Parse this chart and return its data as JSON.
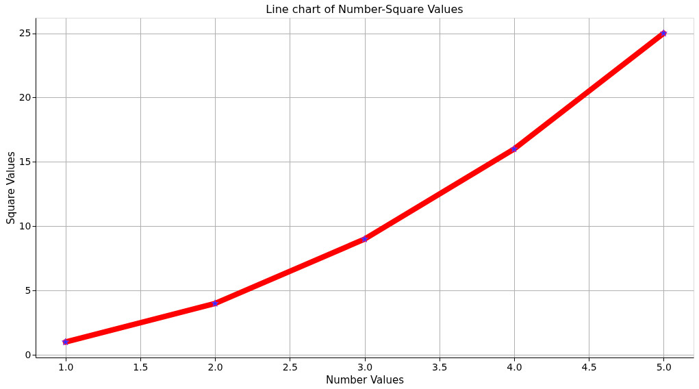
{
  "chart_data": {
    "type": "line",
    "title": "Line chart of Number-Square Values",
    "xlabel": "Number Values",
    "ylabel": "Square Values",
    "x": [
      1,
      2,
      3,
      4,
      5
    ],
    "series": [
      {
        "color": "#ff0000",
        "values": [
          1,
          4,
          9,
          16,
          25
        ]
      }
    ],
    "xlim": [
      0.8,
      5.2
    ],
    "xticks": [
      {
        "value": 1,
        "label": "1.0"
      },
      {
        "value": 1.5,
        "label": "1.5"
      },
      {
        "value": 2,
        "label": "2.0"
      },
      {
        "value": 2.5,
        "label": "2.5"
      },
      {
        "value": 3,
        "label": "3.0"
      },
      {
        "value": 3.5,
        "label": "3.5"
      },
      {
        "value": 4,
        "label": "4.0"
      },
      {
        "value": 4.5,
        "label": "4.5"
      },
      {
        "value": 5,
        "label": "5.0"
      }
    ],
    "ylim": [
      -0.2,
      26.2
    ],
    "yticks": [
      0,
      5,
      10,
      15,
      20,
      25
    ],
    "grid": true,
    "marker": "star",
    "line_style": "solid"
  }
}
